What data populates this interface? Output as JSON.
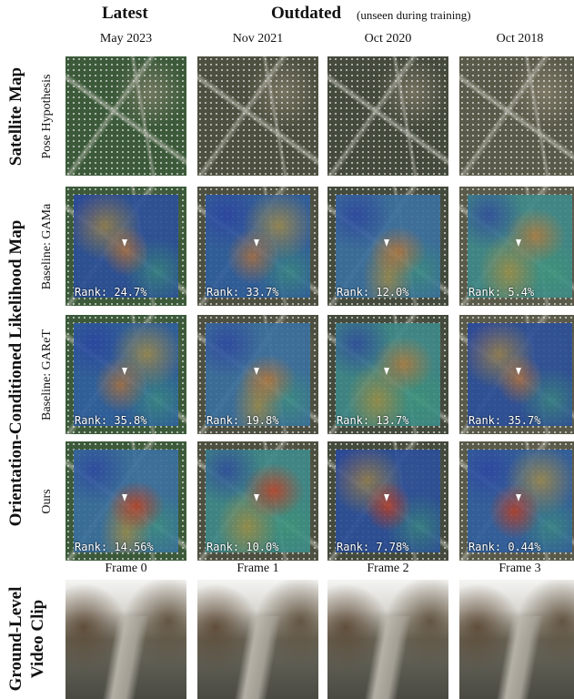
{
  "header": {
    "latest": "Latest",
    "outdated": "Outdated",
    "outdated_note": "(unseen during training)",
    "dates": [
      "May 2023",
      "Nov 2021",
      "Oct 2020",
      "Oct 2018"
    ]
  },
  "row_groups": {
    "satellite": "Satellite Map",
    "likelihood": "Orientation-Conditioned Likelihood Map",
    "video": [
      "Ground-Level",
      "Video Clip"
    ]
  },
  "rows": [
    {
      "label": "Pose Hypothesis"
    },
    {
      "label": "Baseline: GAMa",
      "ranks": [
        "Rank: 24.7%",
        "Rank: 33.7%",
        "Rank: 12.0%",
        "Rank: 5.4%"
      ]
    },
    {
      "label": "Baseline: GAReT",
      "ranks": [
        "Rank: 35.8%",
        "Rank: 19.8%",
        "Rank: 13.7%",
        "Rank: 35.7%"
      ]
    },
    {
      "label": "Ours",
      "ranks": [
        "Rank: 14.56%",
        "Rank: 10.0%",
        "Rank: 7.78%",
        "Rank: 0.44%"
      ]
    }
  ],
  "frames": [
    "Frame 0",
    "Frame 1",
    "Frame 2",
    "Frame 3"
  ]
}
